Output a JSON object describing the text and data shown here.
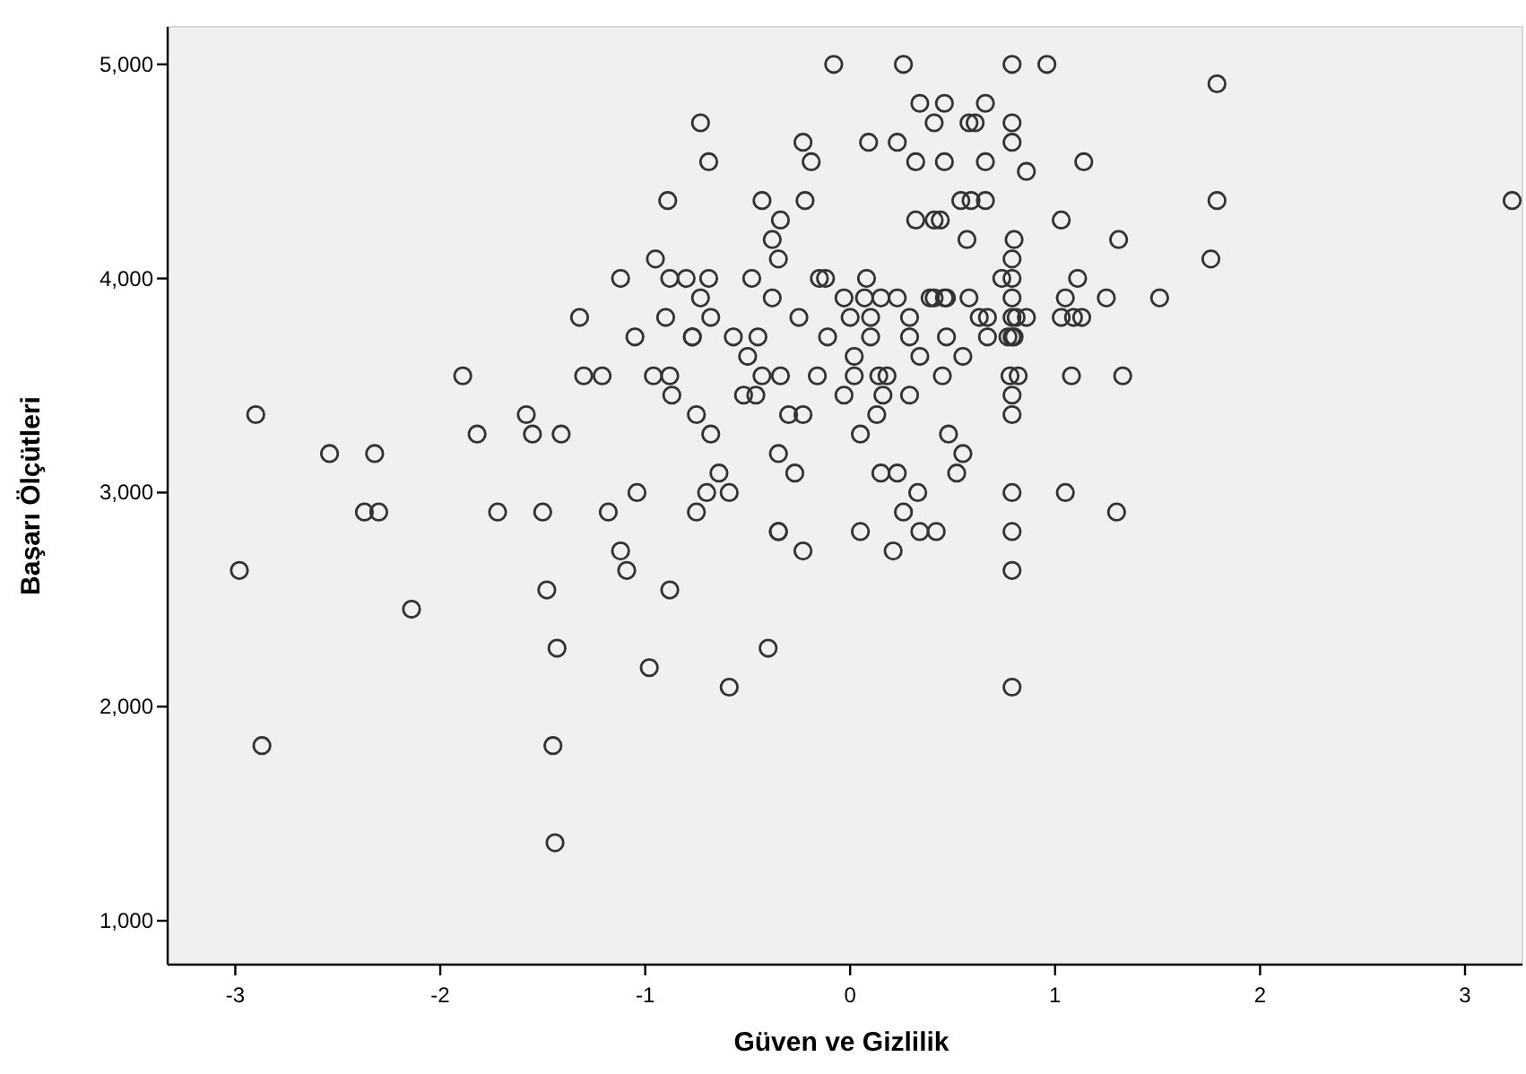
{
  "chart_data": {
    "type": "scatter",
    "xlabel": "Güven ve Gizlilik",
    "ylabel": "Başarı Ölçütleri",
    "marker": "circle",
    "color": "#333333",
    "xlim": [
      -3.33,
      3.28
    ],
    "ylim": [
      795,
      5175
    ],
    "xticks": [
      -3,
      -2,
      -1,
      0,
      1,
      2,
      3
    ],
    "yticks": [
      {
        "value": 1000,
        "label": "1,000"
      },
      {
        "value": 2000,
        "label": "2,000"
      },
      {
        "value": 3000,
        "label": "3,000"
      },
      {
        "value": 4000,
        "label": "4,000"
      },
      {
        "value": 5000,
        "label": "5,000"
      }
    ],
    "x": [
      -0.08,
      0.26,
      0.79,
      0.96,
      1.79,
      0.34,
      0.46,
      0.66,
      -0.73,
      0.41,
      0.58,
      0.61,
      0.79,
      -0.23,
      0.09,
      0.23,
      0.79,
      -0.69,
      -0.19,
      0.32,
      0.46,
      0.66,
      1.14,
      0.86,
      -0.89,
      -0.43,
      -0.22,
      0.54,
      0.59,
      0.66,
      1.79,
      3.23,
      -0.34,
      0.32,
      0.41,
      0.44,
      1.03,
      -0.38,
      0.57,
      0.8,
      1.31,
      -0.95,
      -0.35,
      0.79,
      1.76,
      -1.12,
      -0.88,
      -0.8,
      -0.69,
      -0.48,
      -0.15,
      -0.12,
      0.08,
      0.74,
      0.79,
      1.11,
      -0.73,
      -0.38,
      -0.03,
      0.07,
      0.15,
      0.23,
      0.39,
      0.41,
      0.46,
      0.47,
      0.58,
      0.79,
      1.05,
      1.25,
      1.51,
      -1.32,
      -0.9,
      -0.68,
      -0.25,
      0,
      0.1,
      0.29,
      0.63,
      0.67,
      0.79,
      0.81,
      0.86,
      1.03,
      1.09,
      1.13,
      -1.05,
      -0.77,
      -0.77,
      -0.57,
      -0.45,
      -0.11,
      0.1,
      0.29,
      0.47,
      0.67,
      0.77,
      0.79,
      0.8,
      -0.5,
      0.02,
      0.34,
      0.55,
      -1.89,
      -1.3,
      -1.21,
      -0.96,
      -0.88,
      -0.43,
      -0.34,
      -0.16,
      0.02,
      0.14,
      0.18,
      0.45,
      0.78,
      0.82,
      1.08,
      1.33,
      -0.87,
      -0.52,
      -0.46,
      -0.03,
      0.16,
      0.29,
      0.79,
      -2.9,
      -1.58,
      -0.75,
      -0.3,
      -0.23,
      0.13,
      0.79,
      -1.82,
      -1.55,
      -1.41,
      -0.68,
      0.05,
      0.48,
      -2.54,
      -2.32,
      -0.35,
      0.55,
      -0.64,
      -0.27,
      0.15,
      0.23,
      0.52,
      -1.04,
      -0.7,
      -0.59,
      0.33,
      0.79,
      1.05,
      -2.37,
      -2.3,
      -1.72,
      -1.5,
      -1.18,
      -0.75,
      0.26,
      1.3,
      -0.35,
      -0.35,
      0.05,
      0.34,
      0.42,
      0.79,
      -1.12,
      -0.23,
      0.21,
      -2.98,
      -1.09,
      0.79,
      -1.48,
      -0.88,
      -2.14,
      -1.43,
      -0.4,
      -0.98,
      -0.59,
      0.79,
      -2.87,
      -1.45,
      -1.44
    ],
    "values": [
      5000,
      5000,
      5000,
      5000,
      4909,
      4818,
      4818,
      4818,
      4727,
      4727,
      4727,
      4727,
      4727,
      4636,
      4636,
      4636,
      4636,
      4545,
      4545,
      4545,
      4545,
      4545,
      4545,
      4500,
      4364,
      4364,
      4364,
      4364,
      4364,
      4364,
      4364,
      4364,
      4273,
      4273,
      4273,
      4273,
      4273,
      4182,
      4182,
      4182,
      4182,
      4091,
      4091,
      4091,
      4091,
      4000,
      4000,
      4000,
      4000,
      4000,
      4000,
      4000,
      4000,
      4000,
      4000,
      4000,
      3909,
      3909,
      3909,
      3909,
      3909,
      3909,
      3909,
      3909,
      3909,
      3909,
      3909,
      3909,
      3909,
      3909,
      3909,
      3818,
      3818,
      3818,
      3818,
      3818,
      3818,
      3818,
      3818,
      3818,
      3818,
      3818,
      3818,
      3818,
      3818,
      3818,
      3727,
      3727,
      3727,
      3727,
      3727,
      3727,
      3727,
      3727,
      3727,
      3727,
      3727,
      3727,
      3727,
      3636,
      3636,
      3636,
      3636,
      3545,
      3545,
      3545,
      3545,
      3545,
      3545,
      3545,
      3545,
      3545,
      3545,
      3545,
      3545,
      3545,
      3545,
      3545,
      3545,
      3455,
      3455,
      3455,
      3455,
      3455,
      3455,
      3455,
      3364,
      3364,
      3364,
      3364,
      3364,
      3364,
      3364,
      3273,
      3273,
      3273,
      3273,
      3273,
      3273,
      3182,
      3182,
      3182,
      3182,
      3091,
      3091,
      3091,
      3091,
      3091,
      3000,
      3000,
      3000,
      3000,
      3000,
      3000,
      2909,
      2909,
      2909,
      2909,
      2909,
      2909,
      2909,
      2909,
      2818,
      2818,
      2818,
      2818,
      2818,
      2818,
      2727,
      2727,
      2727,
      2636,
      2636,
      2636,
      2545,
      2545,
      2455,
      2273,
      2273,
      2182,
      2091,
      2091,
      1818,
      1818,
      1364
    ]
  }
}
